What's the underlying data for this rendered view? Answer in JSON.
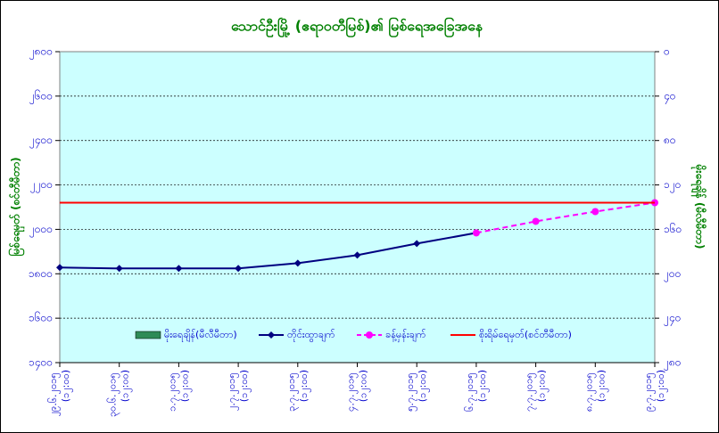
{
  "chart_data": {
    "type": "line",
    "title": "သောင်ဦးမြို့ (ဧရာဝတီမြစ်)၏ မြစ်ရေအခြေအနေ",
    "y_label": "မြစ်ရေမှတ် (စင်တီမီတာ)",
    "y2_label": "မိုးရေချိန် (မီလီမီတာ)",
    "categories": [
      "၂၉.၆.၂၀၁၅ (၁၂:၀၀)",
      "၃၀.၆.၂၀၁၅ (၁၂:၀၀)",
      "၁.၇.၂၀၁၅ (၁၂:၀၀)",
      "၂.၇.၂၀၁၅ (၁၂:၀၀)",
      "၃.၇.၂၀၁၅ (၁၂:၀၀)",
      "၄.၇.၂၀၁၅ (၁၂:၀၀)",
      "၅.၇.၂၀၁၅ (၁၂:၀၀)",
      "၆.၇.၂၀၁၅ (၁၂:၀၀)",
      "၇.၇.၂၀၁၅ (၁၂:၀၀)",
      "၈.၇.၂၀၁၅ (၁၂:၀၀)",
      "၉.၇.၂၀၁၅ (၁၂:၀၀)"
    ],
    "series": [
      {
        "name": "မိုးရေချိန်(မီလီမီတာ)",
        "color": "#2e8b57",
        "kind": "bar",
        "axis": "y2",
        "values": [
          null,
          null,
          null,
          null,
          null,
          null,
          null,
          null,
          null,
          null,
          null
        ]
      },
      {
        "name": "တိုင်းထွာချက်",
        "color": "#000080",
        "kind": "line",
        "dash": false,
        "marker": "diamond",
        "values": [
          1828,
          1824,
          1824,
          1824,
          1848,
          1884,
          1936,
          1984,
          null,
          null,
          null
        ]
      },
      {
        "name": "ခန့်မှန်းချက်",
        "color": "#ff00ff",
        "kind": "line",
        "dash": true,
        "marker": "circle",
        "values": [
          null,
          null,
          null,
          null,
          null,
          null,
          null,
          1984,
          2036,
          2080,
          2120
        ]
      },
      {
        "name": "စိုးရိမ်ရေမှတ်(စင်တီမီတာ)",
        "color": "#ff0000",
        "kind": "hline",
        "value": 2120
      }
    ],
    "ylim": [
      1400,
      2800
    ],
    "yticks": [
      {
        "value": 1400,
        "label": "၁၄၀၀"
      },
      {
        "value": 1600,
        "label": "၁၆၀၀"
      },
      {
        "value": 1800,
        "label": "၁၈၀၀"
      },
      {
        "value": 2000,
        "label": "၂၀၀၀"
      },
      {
        "value": 2200,
        "label": "၂၂၀၀"
      },
      {
        "value": 2400,
        "label": "၂၄၀၀"
      },
      {
        "value": 2600,
        "label": "၂၆၀၀"
      },
      {
        "value": 2800,
        "label": "၂၈၀၀"
      }
    ],
    "y2lim": [
      280,
      0
    ],
    "y2ticks": [
      {
        "value": 0,
        "label": "၀"
      },
      {
        "value": 40,
        "label": "၄၀"
      },
      {
        "value": 80,
        "label": "၈၀"
      },
      {
        "value": 120,
        "label": "၁၂၀"
      },
      {
        "value": 160,
        "label": "၁၆၀"
      },
      {
        "value": 200,
        "label": "၂၀၀"
      },
      {
        "value": 240,
        "label": "၂၄၀"
      },
      {
        "value": 280,
        "label": "၂၈၀"
      }
    ],
    "grid": true,
    "plot_background": "#ccffff"
  }
}
